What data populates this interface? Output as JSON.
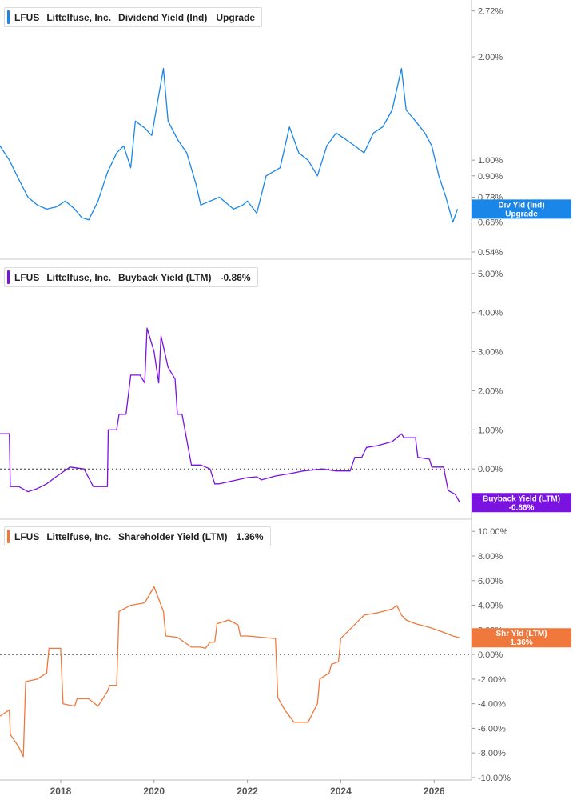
{
  "colors": {
    "dividend": "#1a86e8",
    "buyback": "#7a12e0",
    "shareholder": "#f0783c",
    "axis": "#555555",
    "divider": "#c8c8c8"
  },
  "chart_data": [
    {
      "type": "line",
      "ticker": "LFUS",
      "company": "Littelfuse, Inc.",
      "metric": "Dividend Yield (Ind)",
      "status": "Upgrade",
      "scale": "log",
      "ylim": [
        0.52,
        2.82
      ],
      "yticks": [
        "2.72%",
        "2.00%",
        "1.00%",
        "0.90%",
        "0.78%",
        "0.66%",
        "0.54%"
      ],
      "ytick_values": [
        2.72,
        2.0,
        1.0,
        0.9,
        0.78,
        0.66,
        0.54
      ],
      "badge": {
        "title": "Div Yld (Ind)",
        "value": "Upgrade"
      },
      "series": [
        {
          "x": [
            2016.7,
            2016.9,
            2017.1,
            2017.3,
            2017.5,
            2017.7,
            2017.9,
            2018.1,
            2018.3,
            2018.45,
            2018.6,
            2018.8,
            2019.0,
            2019.2,
            2019.35,
            2019.5,
            2019.6,
            2019.8,
            2019.95,
            2020.2,
            2020.3,
            2020.5,
            2020.7,
            2020.9,
            2021.0,
            2021.2,
            2021.4,
            2021.6,
            2021.7,
            2021.9,
            2022.0,
            2022.2,
            2022.4,
            2022.7,
            2022.9,
            2023.1,
            2023.3,
            2023.5,
            2023.7,
            2023.9,
            2024.1,
            2024.3,
            2024.5,
            2024.7,
            2024.9,
            2025.1,
            2025.3,
            2025.4,
            2025.6,
            2025.8,
            2025.95,
            2026.1,
            2026.25,
            2026.4,
            2026.5
          ],
          "y": [
            1.1,
            1.0,
            0.88,
            0.78,
            0.74,
            0.72,
            0.73,
            0.76,
            0.72,
            0.68,
            0.67,
            0.76,
            0.92,
            1.05,
            1.1,
            0.95,
            1.3,
            1.24,
            1.18,
            1.85,
            1.3,
            1.15,
            1.05,
            0.85,
            0.74,
            0.76,
            0.78,
            0.74,
            0.72,
            0.74,
            0.76,
            0.7,
            0.9,
            0.95,
            1.25,
            1.05,
            1.0,
            0.9,
            1.1,
            1.2,
            1.15,
            1.1,
            1.05,
            1.2,
            1.25,
            1.4,
            1.85,
            1.4,
            1.3,
            1.2,
            1.1,
            0.9,
            0.78,
            0.66,
            0.72
          ]
        }
      ]
    },
    {
      "type": "line",
      "ticker": "LFUS",
      "company": "Littelfuse, Inc.",
      "metric": "Buyback Yield (LTM)",
      "value_label": "-0.86%",
      "ylim": [
        -1.1,
        5.2
      ],
      "yticks": [
        "5.00%",
        "4.00%",
        "3.00%",
        "2.00%",
        "1.00%",
        "0.00%"
      ],
      "ytick_values": [
        5,
        4,
        3,
        2,
        1,
        0
      ],
      "badge": {
        "title": "Buyback Yield (LTM)",
        "value": "-0.86%"
      },
      "series": [
        {
          "x": [
            2016.7,
            2016.9,
            2016.92,
            2017.1,
            2017.3,
            2017.5,
            2017.7,
            2017.9,
            2018.2,
            2018.5,
            2018.7,
            2019.0,
            2019.02,
            2019.2,
            2019.25,
            2019.4,
            2019.5,
            2019.7,
            2019.8,
            2019.85,
            2020.0,
            2020.1,
            2020.15,
            2020.3,
            2020.45,
            2020.5,
            2020.6,
            2020.8,
            2021.0,
            2021.2,
            2021.3,
            2021.4,
            2021.7,
            2022.0,
            2022.2,
            2022.3,
            2022.6,
            2022.9,
            2023.2,
            2023.6,
            2023.9,
            2024.2,
            2024.3,
            2024.45,
            2024.55,
            2024.8,
            2025.1,
            2025.3,
            2025.35,
            2025.6,
            2025.65,
            2025.9,
            2025.95,
            2026.2,
            2026.3,
            2026.45,
            2026.55
          ],
          "y": [
            0.9,
            0.9,
            -0.45,
            -0.45,
            -0.58,
            -0.5,
            -0.38,
            -0.2,
            0.05,
            0.0,
            -0.45,
            -0.45,
            1.0,
            1.0,
            1.4,
            1.4,
            2.4,
            2.4,
            2.2,
            3.6,
            3.0,
            2.2,
            3.4,
            2.6,
            2.3,
            1.4,
            1.4,
            0.1,
            0.1,
            0.0,
            -0.38,
            -0.38,
            -0.3,
            -0.22,
            -0.2,
            -0.28,
            -0.18,
            -0.12,
            -0.05,
            0.0,
            -0.05,
            -0.05,
            0.3,
            0.3,
            0.55,
            0.6,
            0.7,
            0.9,
            0.8,
            0.8,
            0.3,
            0.25,
            0.05,
            0.05,
            -0.55,
            -0.65,
            -0.86
          ]
        }
      ]
    },
    {
      "type": "line",
      "ticker": "LFUS",
      "company": "Littelfuse, Inc.",
      "metric": "Shareholder Yield (LTM)",
      "value_label": "1.36%",
      "ylim": [
        -10.0,
        10.6
      ],
      "yticks": [
        "10.00%",
        "8.00%",
        "6.00%",
        "4.00%",
        "2.00%",
        "0.00%",
        "-2.00%",
        "-4.00%",
        "-6.00%",
        "-8.00%",
        "-10.00%"
      ],
      "ytick_values": [
        10,
        8,
        6,
        4,
        2,
        0,
        -2,
        -4,
        -6,
        -8,
        -10
      ],
      "badge": {
        "title": "Shr Yld (LTM)",
        "value": "1.36%"
      },
      "series": [
        {
          "x": [
            2016.7,
            2016.9,
            2016.92,
            2017.1,
            2017.2,
            2017.25,
            2017.5,
            2017.7,
            2017.75,
            2017.9,
            2018.0,
            2018.05,
            2018.3,
            2018.35,
            2018.6,
            2018.8,
            2019.0,
            2019.05,
            2019.2,
            2019.25,
            2019.5,
            2019.8,
            2020.0,
            2020.2,
            2020.25,
            2020.5,
            2020.8,
            2021.0,
            2021.1,
            2021.2,
            2021.3,
            2021.35,
            2021.6,
            2021.8,
            2021.85,
            2022.0,
            2022.3,
            2022.6,
            2022.65,
            2022.8,
            2023.0,
            2023.3,
            2023.5,
            2023.55,
            2023.75,
            2023.8,
            2023.95,
            2024.0,
            2024.5,
            2024.8,
            2025.1,
            2025.2,
            2025.3,
            2025.4,
            2025.6,
            2025.9,
            2026.2,
            2026.4,
            2026.55
          ],
          "y": [
            -5.0,
            -4.5,
            -6.5,
            -7.5,
            -8.3,
            -2.2,
            -2.0,
            -1.5,
            0.5,
            0.5,
            0.5,
            -4.0,
            -4.2,
            -3.6,
            -3.6,
            -4.2,
            -3.0,
            -2.5,
            -2.5,
            3.5,
            4.0,
            4.2,
            5.5,
            3.5,
            1.5,
            1.4,
            0.6,
            0.6,
            0.5,
            1.0,
            1.0,
            2.5,
            2.8,
            2.4,
            1.5,
            1.5,
            1.4,
            1.3,
            -3.5,
            -4.5,
            -5.5,
            -5.5,
            -4.0,
            -2.0,
            -1.5,
            -0.8,
            -0.6,
            1.3,
            3.2,
            3.4,
            3.7,
            4.0,
            3.2,
            2.8,
            2.5,
            2.2,
            1.8,
            1.5,
            1.36
          ]
        }
      ]
    }
  ],
  "x_axis": {
    "labels": [
      "2018",
      "2020",
      "2022",
      "2024",
      "2026"
    ],
    "values": [
      2018,
      2020,
      2022,
      2024,
      2026
    ],
    "xlim": [
      2016.7,
      2026.8
    ]
  }
}
